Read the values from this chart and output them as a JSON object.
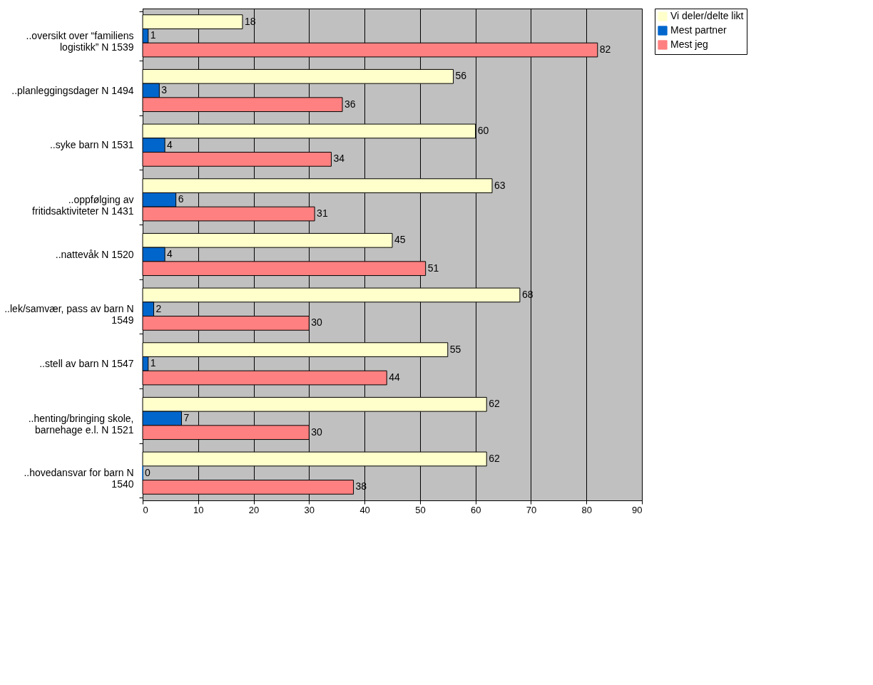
{
  "chart_data": {
    "type": "bar",
    "orientation": "horizontal",
    "categories": [
      "..oversikt over “familiens logistikk” N 1539",
      "..planleggingsdager N 1494",
      "..syke barn N 1531",
      "..oppfølging av fritidsaktiviteter N 1431",
      "..nattevåk N 1520",
      "..lek/samvær, pass av barn N 1549",
      "..stell av barn N 1547",
      "..henting/bringing skole, barnehage e.l. N 1521",
      "..hovedansvar for barn N 1540"
    ],
    "series": [
      {
        "name": "Vi deler/delte likt",
        "color": "#ffffcc",
        "values": [
          18,
          56,
          60,
          63,
          45,
          68,
          55,
          62,
          62
        ]
      },
      {
        "name": "Mest partner",
        "color": "#0066cc",
        "values": [
          1,
          3,
          4,
          6,
          4,
          2,
          1,
          7,
          0
        ]
      },
      {
        "name": "Mest jeg",
        "color": "#ff8080",
        "values": [
          82,
          36,
          34,
          31,
          51,
          30,
          44,
          30,
          38
        ]
      }
    ],
    "xlim": [
      0,
      90
    ],
    "xticks": [
      0,
      10,
      20,
      30,
      40,
      50,
      60,
      70,
      80,
      90
    ],
    "grid": "x",
    "legend": "right",
    "data_labels": true
  }
}
